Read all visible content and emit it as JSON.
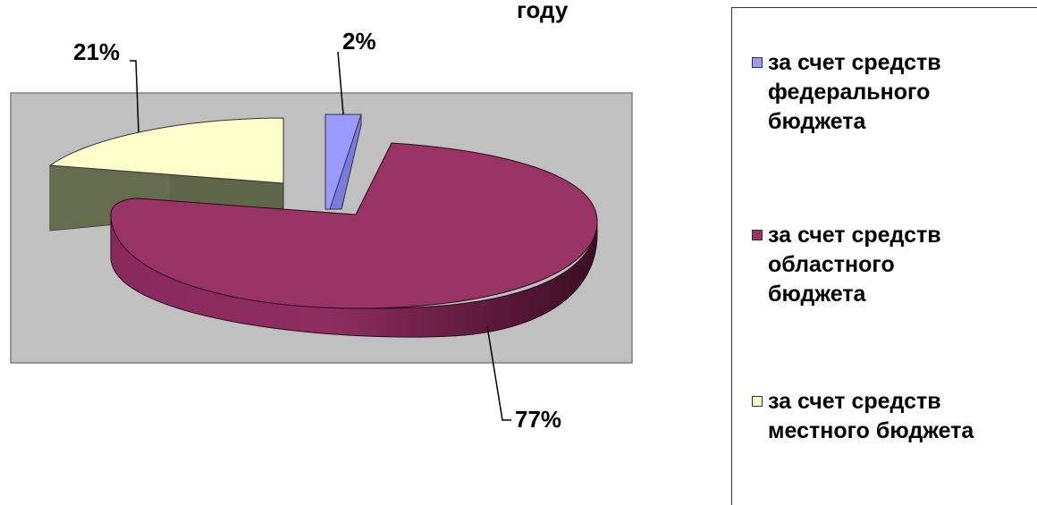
{
  "chart_data": {
    "type": "pie",
    "title": "году",
    "slices": [
      {
        "name": "за счет средств федерального бюджета",
        "value": 2,
        "label": "2%",
        "color": "#9999ff"
      },
      {
        "name": "за счет средств областного бюджета",
        "value": 77,
        "label": "77%",
        "color": "#993366"
      },
      {
        "name": "за счет средств местного бюджета",
        "value": 21,
        "label": "21%",
        "color": "#ffffcc"
      }
    ],
    "legend_position": "right",
    "plot_area_color": "#c0c0c0"
  },
  "legend": {
    "items": [
      {
        "text": "за счет средств\nфедерального\nбюджета",
        "color": "#9999ff"
      },
      {
        "text": "за счет средств\nобластного\nбюджета",
        "color": "#993366"
      },
      {
        "text": "за счет средств\nместного бюджета",
        "color": "#ffffcc"
      }
    ]
  }
}
